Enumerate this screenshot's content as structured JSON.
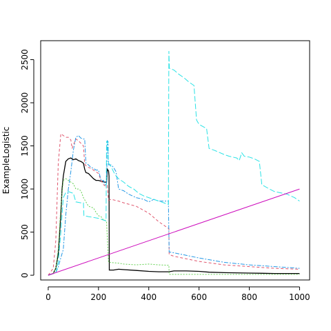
{
  "chart_data": {
    "type": "line",
    "title": "",
    "xlabel": "",
    "ylabel": "ExampleLogistic",
    "xlim": [
      -30,
      1040
    ],
    "ylim": [
      -55,
      2720
    ],
    "x_ticks": [
      0,
      200,
      400,
      600,
      800,
      1000
    ],
    "y_ticks": [
      0,
      500,
      1000,
      1500,
      2000,
      2500
    ],
    "grid": false,
    "legend": "none",
    "series": [
      {
        "color": "#000000",
        "dash": "",
        "points": [
          [
            0,
            0
          ],
          [
            20,
            20
          ],
          [
            30,
            80
          ],
          [
            40,
            250
          ],
          [
            50,
            700
          ],
          [
            55,
            1000
          ],
          [
            60,
            1150
          ],
          [
            70,
            1320
          ],
          [
            80,
            1350
          ],
          [
            90,
            1360
          ],
          [
            100,
            1340
          ],
          [
            110,
            1350
          ],
          [
            120,
            1330
          ],
          [
            130,
            1320
          ],
          [
            140,
            1300
          ],
          [
            145,
            1230
          ],
          [
            150,
            1190
          ],
          [
            160,
            1180
          ],
          [
            170,
            1150
          ],
          [
            180,
            1120
          ],
          [
            190,
            1100
          ],
          [
            200,
            1100
          ],
          [
            210,
            1090
          ],
          [
            225,
            1080
          ],
          [
            232,
            1080
          ],
          [
            235,
            1230
          ],
          [
            240,
            1210
          ],
          [
            242,
            1150
          ],
          [
            243,
            60
          ],
          [
            260,
            60
          ],
          [
            280,
            70
          ],
          [
            300,
            65
          ],
          [
            350,
            55
          ],
          [
            400,
            45
          ],
          [
            440,
            40
          ],
          [
            480,
            40
          ],
          [
            500,
            50
          ],
          [
            550,
            50
          ],
          [
            600,
            45
          ],
          [
            640,
            35
          ],
          [
            700,
            30
          ],
          [
            800,
            25
          ],
          [
            900,
            20
          ],
          [
            1000,
            20
          ]
        ]
      },
      {
        "color": "#df536b",
        "dash": "4,3",
        "points": [
          [
            0,
            0
          ],
          [
            20,
            80
          ],
          [
            30,
            400
          ],
          [
            40,
            1300
          ],
          [
            50,
            1640
          ],
          [
            60,
            1620
          ],
          [
            70,
            1600
          ],
          [
            80,
            1600
          ],
          [
            90,
            1570
          ],
          [
            95,
            1470
          ],
          [
            100,
            1510
          ],
          [
            110,
            1580
          ],
          [
            120,
            1560
          ],
          [
            130,
            1530
          ],
          [
            140,
            1500
          ],
          [
            145,
            1290
          ],
          [
            150,
            1270
          ],
          [
            160,
            1250
          ],
          [
            170,
            1240
          ],
          [
            180,
            1220
          ],
          [
            200,
            1180
          ],
          [
            210,
            1100
          ],
          [
            220,
            1050
          ],
          [
            225,
            1040
          ],
          [
            232,
            1030
          ],
          [
            235,
            1040
          ],
          [
            240,
            870
          ],
          [
            250,
            880
          ],
          [
            280,
            860
          ],
          [
            300,
            840
          ],
          [
            350,
            800
          ],
          [
            400,
            720
          ],
          [
            440,
            620
          ],
          [
            470,
            560
          ],
          [
            480,
            540
          ],
          [
            481,
            240
          ],
          [
            500,
            220
          ],
          [
            600,
            160
          ],
          [
            700,
            120
          ],
          [
            800,
            100
          ],
          [
            900,
            80
          ],
          [
            1000,
            70
          ]
        ]
      },
      {
        "color": "#61d04f",
        "dash": "2,2",
        "points": [
          [
            0,
            0
          ],
          [
            20,
            20
          ],
          [
            30,
            80
          ],
          [
            40,
            300
          ],
          [
            50,
            800
          ],
          [
            60,
            1100
          ],
          [
            70,
            1120
          ],
          [
            80,
            1100
          ],
          [
            90,
            1080
          ],
          [
            100,
            1060
          ],
          [
            110,
            1000
          ],
          [
            120,
            1000
          ],
          [
            130,
            980
          ],
          [
            140,
            900
          ],
          [
            150,
            850
          ],
          [
            160,
            800
          ],
          [
            170,
            790
          ],
          [
            180,
            780
          ],
          [
            190,
            730
          ],
          [
            200,
            690
          ],
          [
            210,
            680
          ],
          [
            220,
            640
          ],
          [
            225,
            640
          ],
          [
            232,
            620
          ],
          [
            240,
            150
          ],
          [
            280,
            140
          ],
          [
            300,
            130
          ],
          [
            350,
            120
          ],
          [
            400,
            130
          ],
          [
            440,
            120
          ],
          [
            480,
            115
          ],
          [
            481,
            10
          ],
          [
            500,
            10
          ],
          [
            600,
            10
          ],
          [
            700,
            10
          ],
          [
            800,
            10
          ],
          [
            900,
            10
          ],
          [
            1000,
            10
          ]
        ]
      },
      {
        "color": "#2297e6",
        "dash": "6,2,2,2",
        "points": [
          [
            0,
            0
          ],
          [
            30,
            30
          ],
          [
            40,
            100
          ],
          [
            60,
            300
          ],
          [
            70,
            700
          ],
          [
            80,
            1000
          ],
          [
            90,
            1200
          ],
          [
            100,
            1450
          ],
          [
            110,
            1600
          ],
          [
            120,
            1620
          ],
          [
            130,
            1590
          ],
          [
            140,
            1580
          ],
          [
            145,
            1580
          ],
          [
            150,
            1300
          ],
          [
            160,
            1280
          ],
          [
            170,
            1250
          ],
          [
            180,
            1240
          ],
          [
            190,
            1220
          ],
          [
            200,
            1220
          ],
          [
            210,
            1100
          ],
          [
            220,
            1100
          ],
          [
            225,
            1050
          ],
          [
            232,
            1050
          ],
          [
            235,
            1560
          ],
          [
            238,
            1550
          ],
          [
            240,
            1280
          ],
          [
            250,
            1280
          ],
          [
            260,
            1250
          ],
          [
            270,
            1200
          ],
          [
            280,
            1000
          ],
          [
            300,
            980
          ],
          [
            320,
            940
          ],
          [
            350,
            900
          ],
          [
            380,
            880
          ],
          [
            400,
            850
          ],
          [
            420,
            880
          ],
          [
            440,
            860
          ],
          [
            460,
            860
          ],
          [
            478,
            860
          ],
          [
            481,
            270
          ],
          [
            500,
            260
          ],
          [
            600,
            200
          ],
          [
            700,
            150
          ],
          [
            800,
            120
          ],
          [
            900,
            100
          ],
          [
            1000,
            80
          ]
        ]
      },
      {
        "color": "#28e2e5",
        "dash": "8,3",
        "points": [
          [
            0,
            0
          ],
          [
            30,
            30
          ],
          [
            40,
            150
          ],
          [
            50,
            500
          ],
          [
            60,
            900
          ],
          [
            70,
            960
          ],
          [
            80,
            970
          ],
          [
            90,
            960
          ],
          [
            100,
            950
          ],
          [
            110,
            850
          ],
          [
            130,
            840
          ],
          [
            140,
            840
          ],
          [
            142,
            690
          ],
          [
            160,
            680
          ],
          [
            180,
            670
          ],
          [
            200,
            660
          ],
          [
            220,
            640
          ],
          [
            230,
            630
          ],
          [
            232,
            1550
          ],
          [
            236,
            1550
          ],
          [
            240,
            1300
          ],
          [
            250,
            1260
          ],
          [
            260,
            1200
          ],
          [
            270,
            1150
          ],
          [
            280,
            1120
          ],
          [
            290,
            1100
          ],
          [
            300,
            1080
          ],
          [
            320,
            1030
          ],
          [
            340,
            1000
          ],
          [
            360,
            950
          ],
          [
            380,
            920
          ],
          [
            400,
            900
          ],
          [
            420,
            880
          ],
          [
            440,
            860
          ],
          [
            460,
            840
          ],
          [
            478,
            820
          ],
          [
            480,
            2600
          ],
          [
            482,
            2400
          ],
          [
            500,
            2380
          ],
          [
            520,
            2330
          ],
          [
            540,
            2290
          ],
          [
            560,
            2240
          ],
          [
            580,
            2200
          ],
          [
            590,
            1800
          ],
          [
            600,
            1750
          ],
          [
            630,
            1700
          ],
          [
            640,
            1470
          ],
          [
            660,
            1450
          ],
          [
            700,
            1400
          ],
          [
            720,
            1380
          ],
          [
            750,
            1360
          ],
          [
            760,
            1330
          ],
          [
            770,
            1420
          ],
          [
            780,
            1380
          ],
          [
            800,
            1370
          ],
          [
            820,
            1350
          ],
          [
            840,
            1320
          ],
          [
            850,
            1050
          ],
          [
            880,
            1000
          ],
          [
            900,
            970
          ],
          [
            950,
            940
          ],
          [
            980,
            900
          ],
          [
            1000,
            860
          ]
        ]
      },
      {
        "color": "#cd0bbc",
        "dash": "",
        "points": [
          [
            0,
            0
          ],
          [
            1000,
            1000
          ]
        ]
      }
    ]
  }
}
